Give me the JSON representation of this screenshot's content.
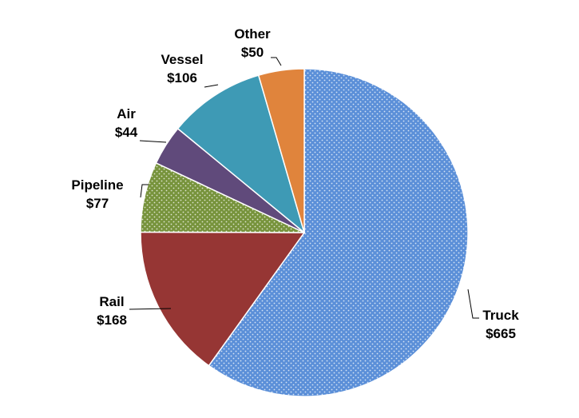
{
  "chart_data": {
    "type": "pie",
    "title": "",
    "categories": [
      "Truck",
      "Rail",
      "Pipeline",
      "Air",
      "Vessel",
      "Other"
    ],
    "values": [
      665,
      168,
      77,
      44,
      106,
      50
    ],
    "value_labels": [
      "$665",
      "$168",
      "$77",
      "$44",
      "$106",
      "$50"
    ],
    "colors": [
      "#5B8FD8",
      "#963634",
      "#77933C",
      "#604A7B",
      "#3E9AB5",
      "#E0843C"
    ],
    "textured": [
      true,
      false,
      true,
      false,
      false,
      false
    ],
    "start": "12 o'clock",
    "direction": "clockwise",
    "legend": "none",
    "data_labels": "outside with leader lines"
  }
}
